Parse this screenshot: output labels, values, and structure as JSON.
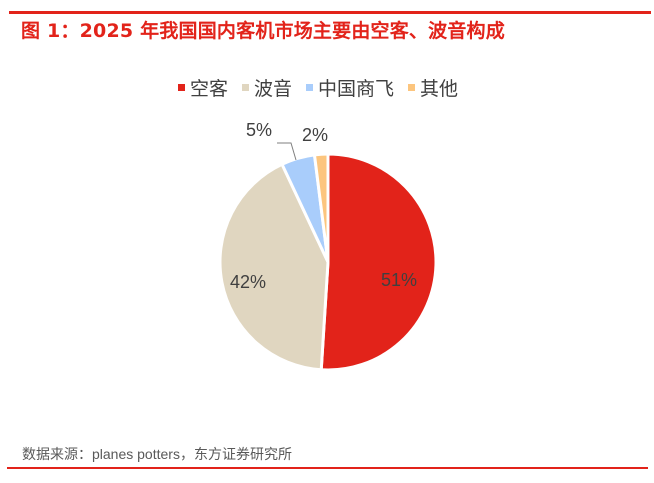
{
  "header": {
    "title": "图 1：2025 年我国国内客机市场主要由空客、波音构成"
  },
  "footer": {
    "source": "数据来源：planes potters，东方证券研究所"
  },
  "colors": {
    "accent": "#e2231a",
    "airbus": "#e2231a",
    "boeing": "#e0d6c0",
    "comac": "#a9cdfb",
    "other": "#fcc57e"
  },
  "legend": [
    {
      "label": "空客",
      "color": "#e2231a"
    },
    {
      "label": "波音",
      "color": "#e0d6c0"
    },
    {
      "label": "中国商飞",
      "color": "#a9cdfb"
    },
    {
      "label": "其他",
      "color": "#fcc57e"
    }
  ],
  "labels": {
    "airbus": "51%",
    "boeing": "42%",
    "comac": "5%",
    "other": "2%"
  },
  "chart_data": {
    "type": "pie",
    "title": "图 1：2025 年我国国内客机市场主要由空客、波音构成",
    "categories": [
      "空客",
      "波音",
      "中国商飞",
      "其他"
    ],
    "values": [
      51,
      42,
      5,
      2
    ],
    "unit": "%",
    "colors": [
      "#e2231a",
      "#e0d6c0",
      "#a9cdfb",
      "#fcc57e"
    ],
    "legend_position": "top",
    "start_angle": "12 o'clock, clockwise",
    "source": "数据来源：planes potters，东方证券研究所"
  }
}
